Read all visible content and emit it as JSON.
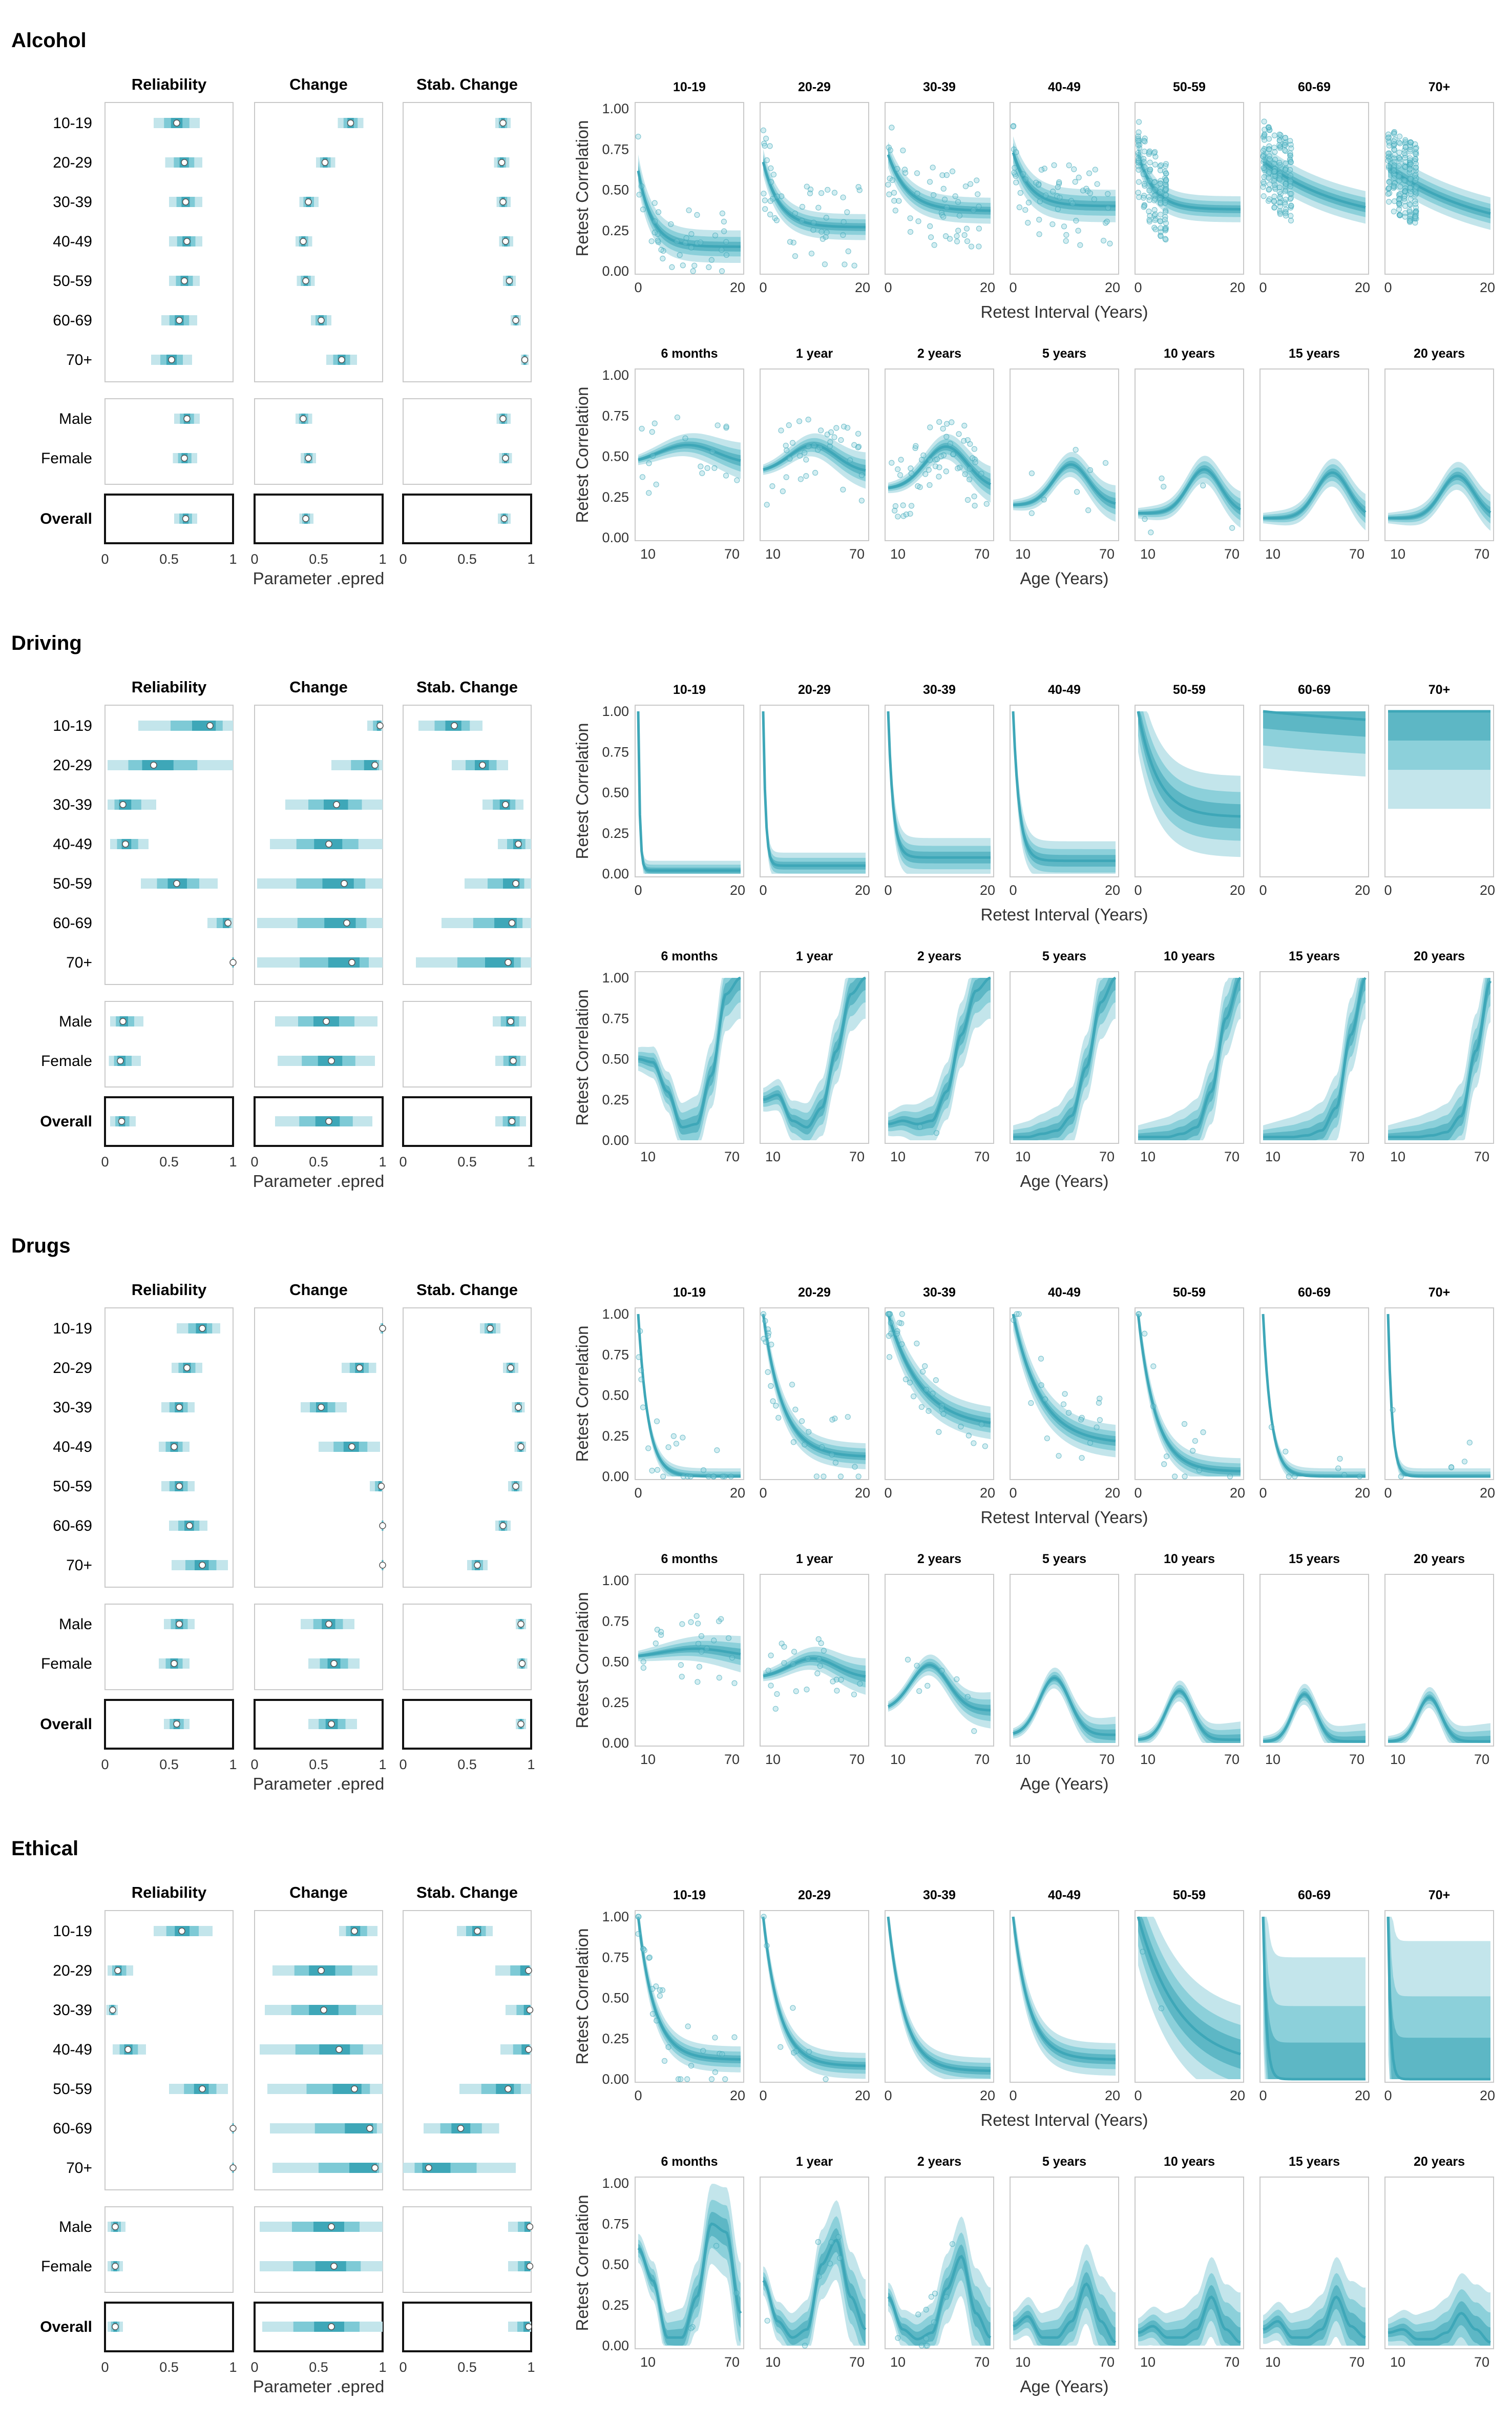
{
  "colors": {
    "accent": "#3ea7b8",
    "band_light": "#c3e5eb",
    "band_mid": "#7ecad6",
    "band_dark": "#3ea7b8",
    "panel_border": "#c9c9c9"
  },
  "column_titles": [
    "Reliability",
    "Change",
    "Stab. Change"
  ],
  "group_labels": [
    "10-19",
    "20-29",
    "30-39",
    "40-49",
    "50-59",
    "60-69",
    "70+",
    "Male",
    "Female",
    "Overall"
  ],
  "left_x_ticks": [
    "0",
    "0.5",
    "1"
  ],
  "left_x_label": "Parameter .epred",
  "top_panel_titles": [
    "10-19",
    "20-29",
    "30-39",
    "40-49",
    "50-59",
    "60-69",
    "70+"
  ],
  "top_x_ticks": [
    "0",
    "20"
  ],
  "top_x_label": "Retest Interval (Years)",
  "bottom_panel_titles": [
    "6 months",
    "1 year",
    "2 years",
    "5 years",
    "10 years",
    "15 years",
    "20 years"
  ],
  "bottom_x_ticks": [
    "10",
    "70"
  ],
  "bottom_x_label": "Age (Years)",
  "y_ticks": [
    "0.00",
    "0.25",
    "0.50",
    "0.75",
    "1.00"
  ],
  "y_label": "Retest Correlation",
  "sections": [
    {
      "name": "Alcohol"
    },
    {
      "name": "Driving"
    },
    {
      "name": "Drugs"
    },
    {
      "name": "Ethical"
    }
  ],
  "chart_data": [
    {
      "type": "interval",
      "section": "Alcohol",
      "xlim": [
        0,
        1
      ],
      "groups": [
        "10-19",
        "20-29",
        "30-39",
        "40-49",
        "50-59",
        "60-69",
        "70+",
        "Male",
        "Female",
        "Overall"
      ],
      "reliability": {
        "median": [
          0.56,
          0.62,
          0.63,
          0.64,
          0.62,
          0.58,
          0.52,
          0.64,
          0.62,
          0.63
        ],
        "lo": [
          0.38,
          0.47,
          0.5,
          0.5,
          0.5,
          0.44,
          0.36,
          0.54,
          0.53,
          0.54
        ],
        "hi": [
          0.74,
          0.76,
          0.76,
          0.76,
          0.74,
          0.72,
          0.68,
          0.74,
          0.72,
          0.72
        ]
      },
      "change": {
        "median": [
          0.75,
          0.55,
          0.42,
          0.38,
          0.4,
          0.52,
          0.68,
          0.38,
          0.42,
          0.4
        ],
        "lo": [
          0.65,
          0.48,
          0.35,
          0.32,
          0.33,
          0.44,
          0.56,
          0.32,
          0.36,
          0.35
        ],
        "hi": [
          0.85,
          0.63,
          0.5,
          0.45,
          0.47,
          0.6,
          0.8,
          0.45,
          0.48,
          0.46
        ]
      },
      "stab_change": {
        "median": [
          0.78,
          0.77,
          0.78,
          0.8,
          0.83,
          0.88,
          0.95,
          0.78,
          0.8,
          0.79
        ],
        "lo": [
          0.72,
          0.71,
          0.73,
          0.75,
          0.78,
          0.84,
          0.92,
          0.73,
          0.75,
          0.74
        ],
        "hi": [
          0.84,
          0.83,
          0.84,
          0.86,
          0.88,
          0.92,
          0.98,
          0.84,
          0.85,
          0.84
        ]
      },
      "top": {
        "asymptote": [
          0.15,
          0.27,
          0.37,
          0.4,
          0.38,
          0.28,
          0.2
        ],
        "decay": [
          0.35,
          0.3,
          0.25,
          0.3,
          0.3,
          0.06,
          0.05
        ],
        "band": [
          0.1,
          0.08,
          0.08,
          0.1,
          0.08,
          0.1,
          0.1
        ]
      },
      "bottom": {
        "peak": [
          0.57,
          0.57,
          0.56,
          0.45,
          0.42,
          0.4,
          0.38
        ],
        "peak_age": [
          40,
          40,
          45,
          45,
          50,
          52,
          52
        ],
        "width": [
          25,
          20,
          18,
          15,
          14,
          14,
          14
        ],
        "base": [
          0.45,
          0.4,
          0.3,
          0.2,
          0.15,
          0.12,
          0.12
        ]
      }
    },
    {
      "type": "interval",
      "section": "Driving",
      "xlim": [
        0,
        1
      ],
      "groups": [
        "10-19",
        "20-29",
        "30-39",
        "40-49",
        "50-59",
        "60-69",
        "70+",
        "Male",
        "Female",
        "Overall"
      ],
      "reliability": {
        "median": [
          0.82,
          0.38,
          0.14,
          0.16,
          0.56,
          0.96,
          1.0,
          0.14,
          0.12,
          0.13
        ],
        "lo": [
          0.26,
          0.02,
          0.02,
          0.04,
          0.28,
          0.8,
          0.99,
          0.04,
          0.03,
          0.04
        ],
        "hi": [
          1.0,
          1.0,
          0.4,
          0.34,
          0.88,
          1.0,
          1.0,
          0.3,
          0.28,
          0.24
        ]
      },
      "change": {
        "median": [
          0.98,
          0.94,
          0.64,
          0.58,
          0.7,
          0.72,
          0.76,
          0.56,
          0.6,
          0.58
        ],
        "lo": [
          0.88,
          0.6,
          0.24,
          0.12,
          0.02,
          0.02,
          0.02,
          0.16,
          0.18,
          0.16
        ],
        "hi": [
          1.0,
          1.0,
          1.0,
          1.0,
          1.0,
          1.0,
          1.0,
          0.96,
          0.94,
          0.92
        ]
      },
      "stab_change": {
        "median": [
          0.4,
          0.62,
          0.8,
          0.9,
          0.88,
          0.85,
          0.82,
          0.84,
          0.86,
          0.85
        ],
        "lo": [
          0.12,
          0.38,
          0.62,
          0.74,
          0.48,
          0.3,
          0.1,
          0.7,
          0.72,
          0.72
        ],
        "hi": [
          0.62,
          0.82,
          0.94,
          1.0,
          1.0,
          1.0,
          1.0,
          0.96,
          0.96,
          0.96
        ]
      },
      "top": {
        "asymptote": [
          0.02,
          0.05,
          0.1,
          0.08,
          0.35,
          0.85,
          1.0
        ],
        "decay": [
          3.0,
          2.0,
          1.0,
          0.8,
          0.25,
          0.02,
          0.0
        ],
        "band": [
          0.06,
          0.08,
          0.12,
          0.12,
          0.25,
          0.35,
          0.6
        ]
      },
      "bottom": {
        "curve": [
          [
            0.5,
            0.48,
            0.3,
            0.08,
            0.1,
            0.4,
            0.9,
            1.0
          ],
          [
            0.25,
            0.28,
            0.12,
            0.08,
            0.2,
            0.55,
            0.9,
            1.0
          ],
          [
            0.1,
            0.12,
            0.1,
            0.12,
            0.3,
            0.65,
            0.92,
            1.0
          ],
          [
            0.02,
            0.02,
            0.04,
            0.06,
            0.15,
            0.45,
            0.85,
            1.0
          ],
          [
            0.02,
            0.02,
            0.02,
            0.04,
            0.08,
            0.3,
            0.75,
            1.0
          ],
          [
            0.02,
            0.02,
            0.02,
            0.03,
            0.06,
            0.2,
            0.65,
            1.0
          ],
          [
            0.02,
            0.02,
            0.02,
            0.03,
            0.05,
            0.15,
            0.55,
            0.98
          ]
        ]
      }
    },
    {
      "type": "interval",
      "section": "Drugs",
      "xlim": [
        0,
        1
      ],
      "groups": [
        "10-19",
        "20-29",
        "30-39",
        "40-49",
        "50-59",
        "60-69",
        "70+",
        "Male",
        "Female",
        "Overall"
      ],
      "reliability": {
        "median": [
          0.76,
          0.64,
          0.58,
          0.54,
          0.58,
          0.66,
          0.76,
          0.58,
          0.54,
          0.56
        ],
        "lo": [
          0.56,
          0.52,
          0.44,
          0.42,
          0.44,
          0.5,
          0.52,
          0.46,
          0.42,
          0.46
        ],
        "hi": [
          0.9,
          0.76,
          0.7,
          0.66,
          0.7,
          0.8,
          0.96,
          0.7,
          0.66,
          0.66
        ]
      },
      "change": {
        "median": [
          1.0,
          0.82,
          0.52,
          0.76,
          0.99,
          1.0,
          1.0,
          0.58,
          0.62,
          0.6
        ],
        "lo": [
          0.98,
          0.68,
          0.36,
          0.5,
          0.9,
          0.99,
          0.99,
          0.36,
          0.42,
          0.42
        ],
        "hi": [
          1.0,
          0.95,
          0.72,
          0.98,
          1.0,
          1.0,
          1.0,
          0.78,
          0.82,
          0.8
        ]
      },
      "stab_change": {
        "median": [
          0.68,
          0.84,
          0.9,
          0.92,
          0.88,
          0.78,
          0.58,
          0.92,
          0.93,
          0.92
        ],
        "lo": [
          0.6,
          0.78,
          0.85,
          0.87,
          0.82,
          0.72,
          0.5,
          0.88,
          0.89,
          0.88
        ],
        "hi": [
          0.76,
          0.9,
          0.95,
          0.96,
          0.93,
          0.84,
          0.66,
          0.96,
          0.97,
          0.96
        ]
      },
      "top": {
        "asymptote": [
          0.0,
          0.12,
          0.3,
          0.2,
          0.03,
          0.0,
          0.0
        ],
        "decay": [
          0.5,
          0.25,
          0.15,
          0.18,
          0.28,
          0.6,
          1.2
        ],
        "band": [
          0.05,
          0.08,
          0.1,
          0.1,
          0.08,
          0.05,
          0.05
        ]
      },
      "bottom": {
        "peak": [
          0.58,
          0.52,
          0.48,
          0.4,
          0.32,
          0.3,
          0.28
        ],
        "peak_age": [
          45,
          40,
          35,
          35,
          35,
          35,
          35
        ],
        "width": [
          30,
          20,
          16,
          13,
          11,
          10,
          10
        ],
        "base": [
          0.52,
          0.4,
          0.2,
          0.05,
          0.02,
          0.01,
          0.01
        ]
      }
    },
    {
      "type": "interval",
      "section": "Ethical",
      "xlim": [
        0,
        1
      ],
      "groups": [
        "10-19",
        "20-29",
        "30-39",
        "40-49",
        "50-59",
        "60-69",
        "70+",
        "Male",
        "Female",
        "Overall"
      ],
      "reliability": {
        "median": [
          0.6,
          0.1,
          0.06,
          0.18,
          0.76,
          1.0,
          1.0,
          0.08,
          0.08,
          0.08
        ],
        "lo": [
          0.38,
          0.02,
          0.01,
          0.06,
          0.5,
          0.99,
          0.99,
          0.02,
          0.02,
          0.02
        ],
        "hi": [
          0.84,
          0.22,
          0.1,
          0.32,
          0.96,
          1.0,
          1.0,
          0.16,
          0.14,
          0.14
        ]
      },
      "change": {
        "median": [
          0.78,
          0.52,
          0.54,
          0.66,
          0.78,
          0.9,
          0.94,
          0.6,
          0.62,
          0.6
        ],
        "lo": [
          0.66,
          0.14,
          0.08,
          0.04,
          0.1,
          0.12,
          0.14,
          0.04,
          0.04,
          0.06
        ],
        "hi": [
          0.96,
          0.96,
          1.0,
          1.0,
          1.0,
          1.0,
          1.0,
          1.0,
          1.0,
          1.0
        ]
      },
      "stab_change": {
        "median": [
          0.58,
          0.98,
          0.99,
          0.98,
          0.82,
          0.45,
          0.2,
          0.99,
          0.99,
          0.98
        ],
        "lo": [
          0.42,
          0.72,
          0.8,
          0.76,
          0.44,
          0.16,
          0.0,
          0.82,
          0.82,
          0.82
        ],
        "hi": [
          0.7,
          1.0,
          1.0,
          1.0,
          1.0,
          0.75,
          0.88,
          1.0,
          1.0,
          1.0
        ]
      },
      "top": {
        "asymptote": [
          0.12,
          0.08,
          0.05,
          0.12,
          0.08,
          0.0,
          0.0
        ],
        "decay": [
          0.3,
          0.3,
          0.3,
          0.3,
          0.12,
          1.5,
          2.0
        ],
        "band": [
          0.08,
          0.08,
          0.08,
          0.1,
          0.3,
          0.75,
          0.85
        ]
      },
      "bottom": {
        "curve": [
          [
            0.6,
            0.4,
            0.05,
            0.05,
            0.3,
            0.75,
            0.7,
            0.2
          ],
          [
            0.4,
            0.15,
            0.05,
            0.1,
            0.5,
            0.65,
            0.3,
            0.1
          ],
          [
            0.3,
            0.1,
            0.04,
            0.08,
            0.35,
            0.55,
            0.2,
            0.05
          ],
          [
            0.12,
            0.18,
            0.05,
            0.05,
            0.15,
            0.38,
            0.15,
            0.02
          ],
          [
            0.08,
            0.12,
            0.05,
            0.05,
            0.1,
            0.3,
            0.1,
            0.02
          ],
          [
            0.1,
            0.15,
            0.05,
            0.05,
            0.1,
            0.3,
            0.12,
            0.05
          ],
          [
            0.08,
            0.1,
            0.04,
            0.04,
            0.08,
            0.2,
            0.1,
            0.02
          ]
        ]
      }
    }
  ]
}
